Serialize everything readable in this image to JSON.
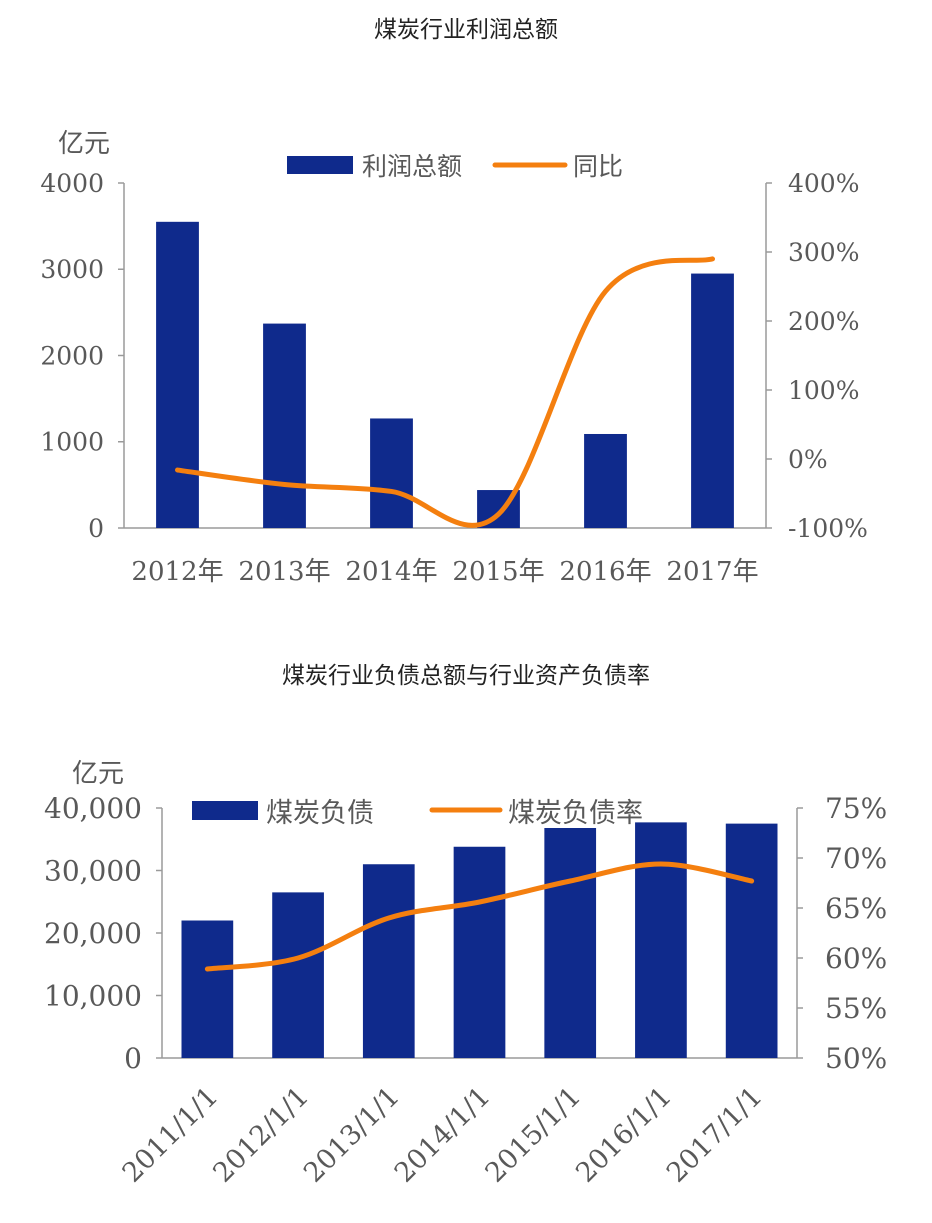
{
  "charts": [
    {
      "title": "煤炭行业利润总额",
      "unit_label": "亿元",
      "categories": [
        "2012年",
        "2013年",
        "2014年",
        "2015年",
        "2016年",
        "2017年"
      ],
      "left_ticks": [
        "4000",
        "3000",
        "2000",
        "1000",
        "0"
      ],
      "right_ticks": [
        "400%",
        "300%",
        "200%",
        "100%",
        "0%",
        "-100%"
      ],
      "legend": {
        "bar": "利润总额",
        "line": "同比"
      }
    },
    {
      "title": "煤炭行业负债总额与行业资产负债率",
      "unit_label": "亿元",
      "categories": [
        "2011/1/1",
        "2012/1/1",
        "2013/1/1",
        "2014/1/1",
        "2015/1/1",
        "2016/1/1",
        "2017/1/1"
      ],
      "left_ticks": [
        "40,000",
        "30,000",
        "20,000",
        "10,000",
        "0"
      ],
      "right_ticks": [
        "75%",
        "70%",
        "65%",
        "60%",
        "55%",
        "50%"
      ],
      "legend": {
        "bar": "煤炭负债",
        "line": "煤炭负债率"
      }
    }
  ],
  "chart_data": [
    {
      "type": "bar",
      "title": "煤炭行业利润总额",
      "categories": [
        "2012年",
        "2013年",
        "2014年",
        "2015年",
        "2016年",
        "2017年"
      ],
      "series": [
        {
          "name": "利润总额",
          "type": "bar",
          "axis": "left",
          "values": [
            3550,
            2370,
            1270,
            440,
            1090,
            2950
          ]
        },
        {
          "name": "同比",
          "type": "line",
          "axis": "right",
          "values": [
            -16,
            -37,
            -47,
            -80,
            243,
            290
          ]
        }
      ],
      "ylabel": "亿元",
      "ylim": [
        0,
        4000
      ],
      "y2lim": [
        -100,
        400
      ],
      "legend": "top",
      "grid": false,
      "colors": {
        "bar": "#0f2a8c",
        "line": "#f47f0f"
      }
    },
    {
      "type": "bar",
      "title": "煤炭行业负债总额与行业资产负债率",
      "categories": [
        "2011/1/1",
        "2012/1/1",
        "2013/1/1",
        "2014/1/1",
        "2015/1/1",
        "2016/1/1",
        "2017/1/1"
      ],
      "series": [
        {
          "name": "煤炭负债",
          "type": "bar",
          "axis": "left",
          "values": [
            22000,
            26500,
            31000,
            33800,
            36800,
            37700,
            37500
          ]
        },
        {
          "name": "煤炭负债率",
          "type": "line",
          "axis": "right",
          "values": [
            58.9,
            60.0,
            64.0,
            65.6,
            67.7,
            69.4,
            67.7
          ]
        }
      ],
      "ylabel": "亿元",
      "ylim": [
        0,
        40000
      ],
      "y2lim": [
        50,
        75
      ],
      "legend": "top",
      "grid": false,
      "colors": {
        "bar": "#0f2a8c",
        "line": "#f47f0f"
      }
    }
  ]
}
